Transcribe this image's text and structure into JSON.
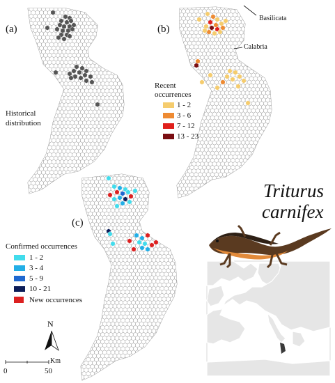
{
  "panels": {
    "a": {
      "label": "(a)",
      "caption_line1": "Historical",
      "caption_line2": "distribution"
    },
    "b": {
      "label": "(b)",
      "region_north": "Basilicata",
      "region_south": "Calabria",
      "legend_title_line1": "Recent",
      "legend_title_line2": "occurrences",
      "legend": [
        {
          "label": "1 - 2",
          "color": "#f5cc6e"
        },
        {
          "label": "3 - 6",
          "color": "#ee8a32"
        },
        {
          "label": "7 - 12",
          "color": "#e0201c"
        },
        {
          "label": "13 - 23",
          "color": "#7a0e12"
        }
      ]
    },
    "c": {
      "label": "(c)",
      "legend_title": "Confirmed occurrences",
      "legend": [
        {
          "label": "1 - 2",
          "color": "#42dcec"
        },
        {
          "label": "3 - 4",
          "color": "#22aee6"
        },
        {
          "label": "5 - 9",
          "color": "#1f68d0"
        },
        {
          "label": "10 - 21",
          "color": "#0c1d58"
        }
      ],
      "new_label": "New occurrences",
      "new_color": "#dc2020"
    }
  },
  "species": {
    "line1": "Triturus",
    "line2": "carnifex"
  },
  "north_arrow": "N",
  "scale_bar": {
    "unit": "Km",
    "start": "0",
    "end": "50"
  },
  "colors": {
    "historical": "#555555",
    "grid_stroke": "#9a9a9a",
    "europe_land": "#e6e6e6"
  }
}
